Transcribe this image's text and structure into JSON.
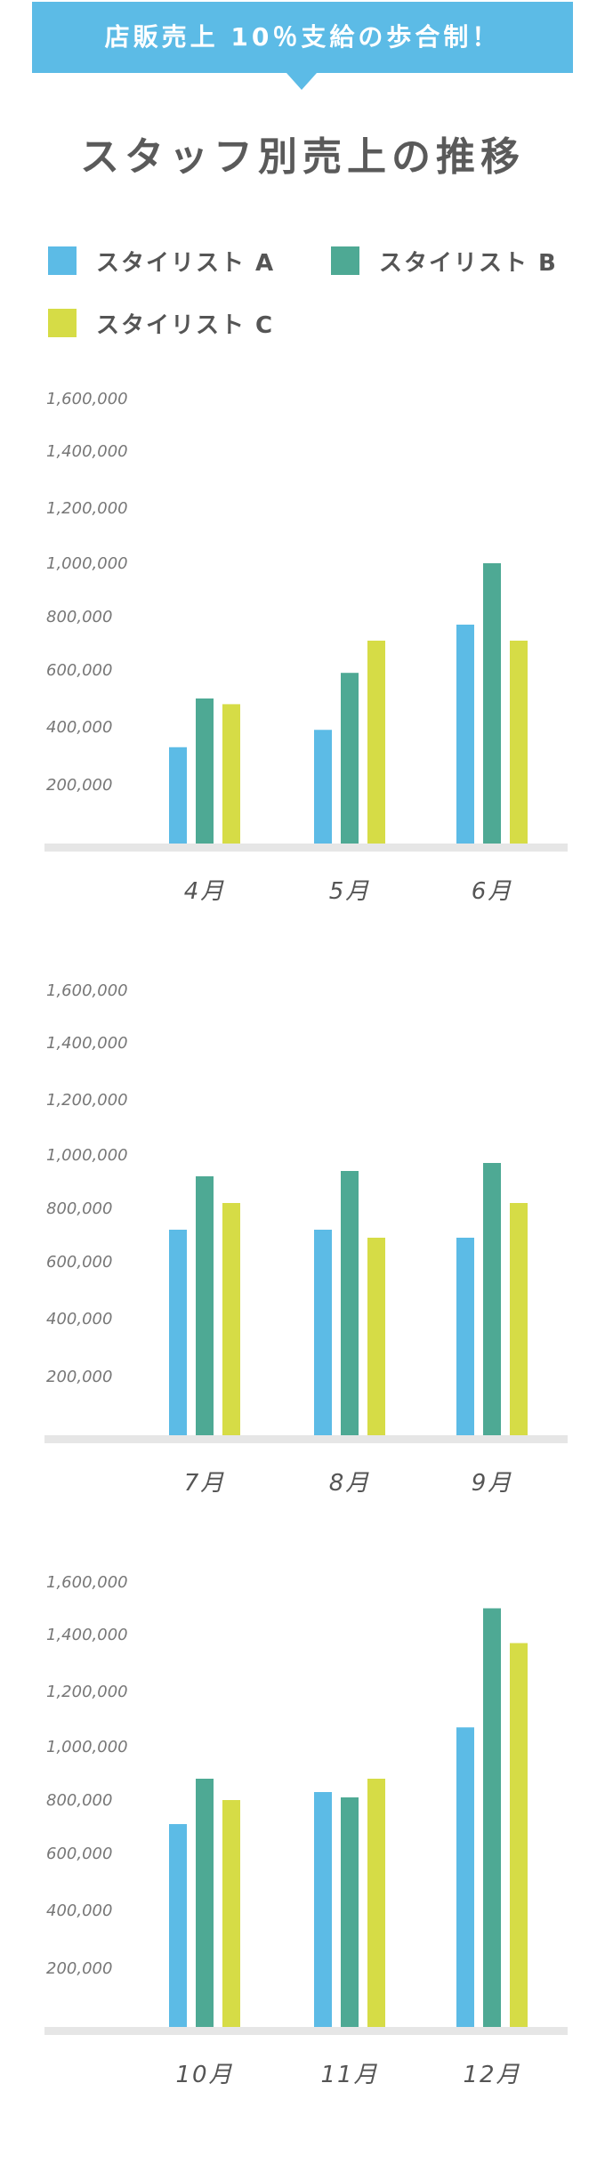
{
  "banner": {
    "text": "店販売上 10％支給の歩合制！"
  },
  "title": "スタッフ別売上の推移",
  "legend": [
    {
      "label": "スタイリスト A",
      "color": "#5cbbe6"
    },
    {
      "label": "スタイリスト B",
      "color": "#4ea994"
    },
    {
      "label": "スタイリスト C",
      "color": "#d6dc46"
    }
  ],
  "chart_data": [
    {
      "type": "bar",
      "categories": [
        "4月",
        "5月",
        "6月"
      ],
      "series": [
        {
          "name": "スタイリスト A",
          "values": [
            330000,
            390000,
            770000
          ]
        },
        {
          "name": "スタイリスト B",
          "values": [
            500000,
            590000,
            1000000
          ]
        },
        {
          "name": "スタイリスト C",
          "values": [
            480000,
            710000,
            710000
          ]
        }
      ],
      "yticks": [
        "200,000",
        "400,000",
        "600,000",
        "800,000",
        "1,000,000",
        "1,200,000",
        "1,400,000",
        "1,600,000"
      ],
      "ylim": [
        0,
        1600000
      ]
    },
    {
      "type": "bar",
      "categories": [
        "7月",
        "8月",
        "9月"
      ],
      "series": [
        {
          "name": "スタイリスト A",
          "values": [
            720000,
            720000,
            690000
          ]
        },
        {
          "name": "スタイリスト B",
          "values": [
            920000,
            940000,
            970000
          ]
        },
        {
          "name": "スタイリスト C",
          "values": [
            820000,
            690000,
            820000
          ]
        }
      ],
      "yticks": [
        "200,000",
        "400,000",
        "600,000",
        "800,000",
        "1,000,000",
        "1,200,000",
        "1,400,000",
        "1,600,000"
      ],
      "ylim": [
        0,
        1600000
      ]
    },
    {
      "type": "bar",
      "categories": [
        "10月",
        "11月",
        "12月"
      ],
      "series": [
        {
          "name": "スタイリスト A",
          "values": [
            710000,
            830000,
            1070000
          ]
        },
        {
          "name": "スタイリスト B",
          "values": [
            880000,
            810000,
            1500000
          ]
        },
        {
          "name": "スタイリスト C",
          "values": [
            800000,
            880000,
            1370000
          ]
        }
      ],
      "yticks": [
        "200,000",
        "400,000",
        "600,000",
        "800,000",
        "1,000,000",
        "1,200,000",
        "1,400,000",
        "1,600,000"
      ],
      "ylim": [
        0,
        1600000
      ]
    }
  ]
}
